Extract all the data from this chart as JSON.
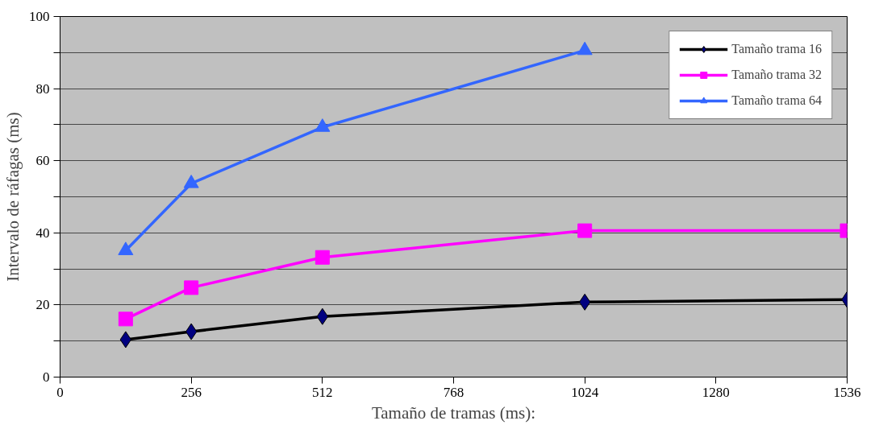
{
  "chart_data": {
    "type": "line",
    "xlabel": "Tamaño de tramas (ms):",
    "ylabel": "Intervalo de ráfagas (ms)",
    "xlim": [
      0,
      1536
    ],
    "xticks": [
      0,
      256,
      512,
      768,
      1024,
      1280,
      1536
    ],
    "ylim": [
      0,
      100
    ],
    "yticks": [
      0,
      {
        "value": 10,
        "label": null
      },
      20,
      {
        "value": 30,
        "label": null
      },
      40,
      {
        "value": 50,
        "label": null
      },
      60,
      {
        "value": 70,
        "label": null
      },
      80,
      {
        "value": 90,
        "label": null
      },
      100
    ],
    "grid": "y",
    "legend": "top right",
    "series": [
      {
        "name": "Tamaño trama 16",
        "color": "#000000",
        "marker": "diamond",
        "x": [
          128,
          256,
          512,
          1024,
          1536
        ],
        "values": [
          10.4,
          12.6,
          16.8,
          20.8,
          21.5
        ]
      },
      {
        "name": "Tamaño trama 32",
        "color": "#ff00ff",
        "marker": "square",
        "x": [
          128,
          256,
          512,
          1024,
          1536
        ],
        "values": [
          16.1,
          24.8,
          33.2,
          40.6,
          40.6
        ]
      },
      {
        "name": "Tamaño trama 64",
        "color": "#3366ff",
        "marker": "triangle",
        "x": [
          128,
          256,
          512,
          1024
        ],
        "values": [
          35.1,
          53.7,
          69.3,
          90.6
        ]
      }
    ]
  }
}
